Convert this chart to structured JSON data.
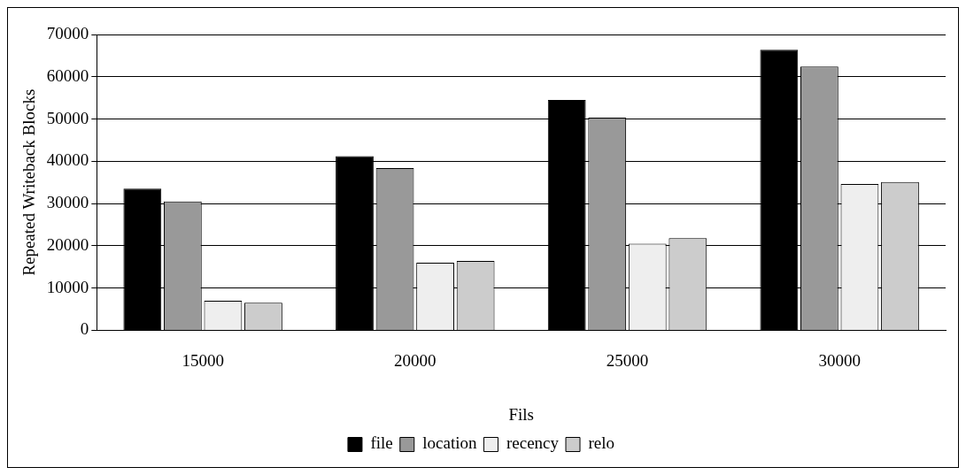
{
  "chart_data": {
    "type": "bar",
    "xlabel": "Fils",
    "ylabel": "Repeated Writeback Blocks",
    "categories": [
      "15000",
      "20000",
      "25000",
      "30000"
    ],
    "series": [
      {
        "name": "file",
        "color": "#000000",
        "values": [
          33500,
          41200,
          54500,
          66400
        ]
      },
      {
        "name": "location",
        "color": "#999999",
        "values": [
          30500,
          38400,
          50300,
          62400
        ]
      },
      {
        "name": "recency",
        "color": "#eeeeee",
        "values": [
          7000,
          16000,
          20500,
          34600
        ]
      },
      {
        "name": "relo",
        "color": "#cccccc",
        "values": [
          6500,
          16400,
          21800,
          35100
        ]
      }
    ],
    "ylim": [
      0,
      70000
    ],
    "yticks": [
      0,
      10000,
      20000,
      30000,
      40000,
      50000,
      60000,
      70000
    ],
    "grid": "y",
    "legend": "bottom"
  }
}
